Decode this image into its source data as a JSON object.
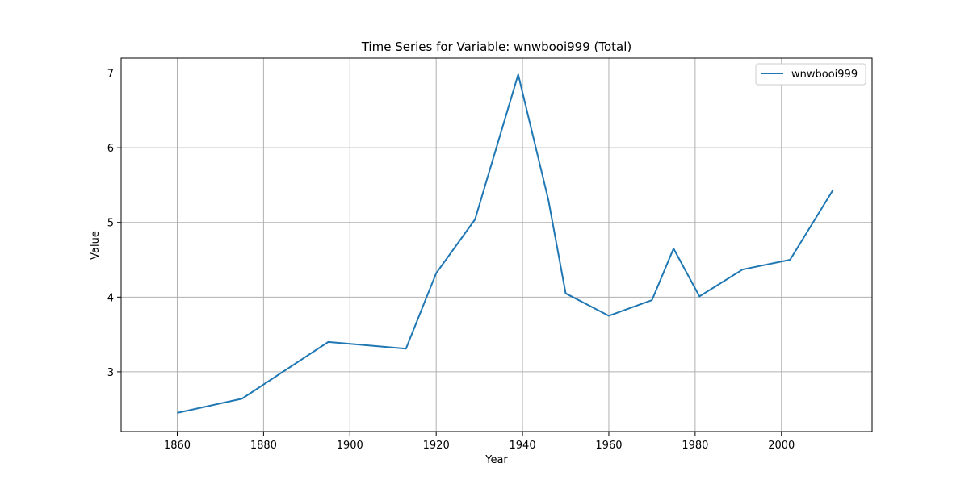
{
  "chart_data": {
    "type": "line",
    "title": "Time Series for Variable: wnwbooi999 (Total)",
    "xlabel": "Year",
    "ylabel": "Value",
    "xlim": [
      1847,
      2021
    ],
    "ylim": [
      2.2,
      7.2
    ],
    "xticks": [
      1860,
      1880,
      1900,
      1920,
      1940,
      1960,
      1980,
      2000
    ],
    "yticks": [
      3,
      4,
      5,
      6,
      7
    ],
    "grid": true,
    "legend_position": "top-right",
    "series": [
      {
        "name": "wnwbooi999",
        "color": "#1f77b4",
        "x": [
          1860,
          1875,
          1895,
          1913,
          1920,
          1929,
          1939,
          1946,
          1950,
          1960,
          1970,
          1975,
          1981,
          1991,
          2002,
          2012
        ],
        "y": [
          2.45,
          2.64,
          3.4,
          3.31,
          4.32,
          5.04,
          6.98,
          5.3,
          4.05,
          3.75,
          3.96,
          4.65,
          4.01,
          4.37,
          4.5,
          5.44
        ]
      }
    ]
  }
}
